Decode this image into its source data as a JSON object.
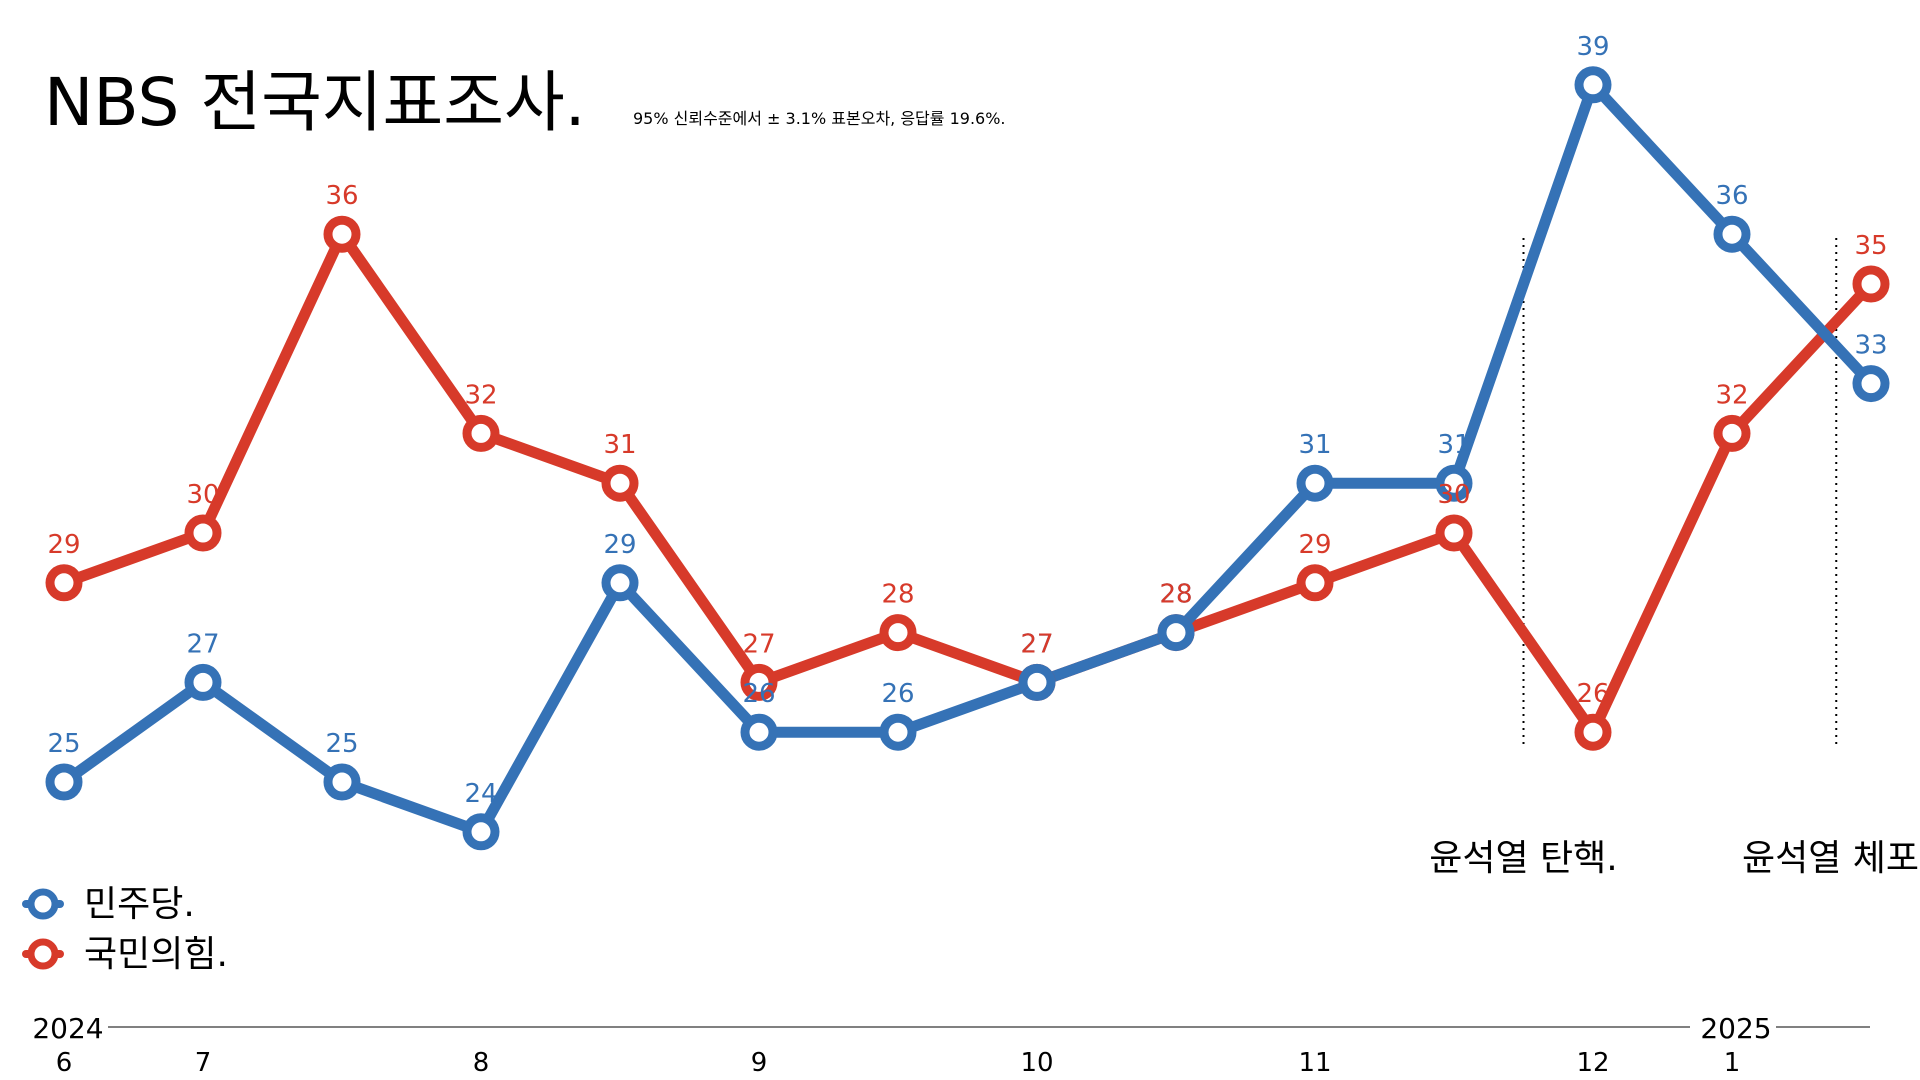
{
  "title": "NBS 전국지표조사.",
  "subtitle": "95% 신뢰수준에서 ± 3.1% 표본오차, 응답률 19.6%.",
  "colors": {
    "blue": "#3572b6",
    "red": "#d73a2a"
  },
  "legend": [
    {
      "label": "민주당.",
      "color": "#3572b6"
    },
    {
      "label": "국민의힘.",
      "color": "#d73a2a"
    }
  ],
  "annotations": [
    {
      "label": "윤석열 탄핵.",
      "x": 10.5
    },
    {
      "label": "윤석열 체포.",
      "x": 12.75
    }
  ],
  "axis": {
    "years": [
      {
        "label": "2024",
        "x": 0
      },
      {
        "label": "2025",
        "x": 12
      }
    ],
    "month_ticks": [
      {
        "label": "6",
        "x": 0
      },
      {
        "label": "7",
        "x": 1
      },
      {
        "label": "8",
        "x": 3
      },
      {
        "label": "9",
        "x": 5
      },
      {
        "label": "10",
        "x": 7
      },
      {
        "label": "11",
        "x": 9
      },
      {
        "label": "12",
        "x": 11
      },
      {
        "label": "1",
        "x": 12
      }
    ]
  },
  "chart_data": {
    "type": "line",
    "x": [
      0,
      1,
      2,
      3,
      4,
      5,
      6,
      7,
      8,
      9,
      10,
      11,
      12,
      13
    ],
    "series": [
      {
        "name": "민주당.",
        "color": "#3572b6",
        "values": [
          25,
          27,
          25,
          24,
          29,
          26,
          26,
          27,
          28,
          31,
          31,
          39,
          36,
          33
        ]
      },
      {
        "name": "국민의힘.",
        "color": "#d73a2a",
        "values": [
          29,
          30,
          36,
          32,
          31,
          27,
          28,
          27,
          28,
          29,
          30,
          26,
          32,
          35
        ]
      }
    ],
    "ylim": [
      23,
      40
    ],
    "xlabel": "",
    "ylabel": ""
  }
}
